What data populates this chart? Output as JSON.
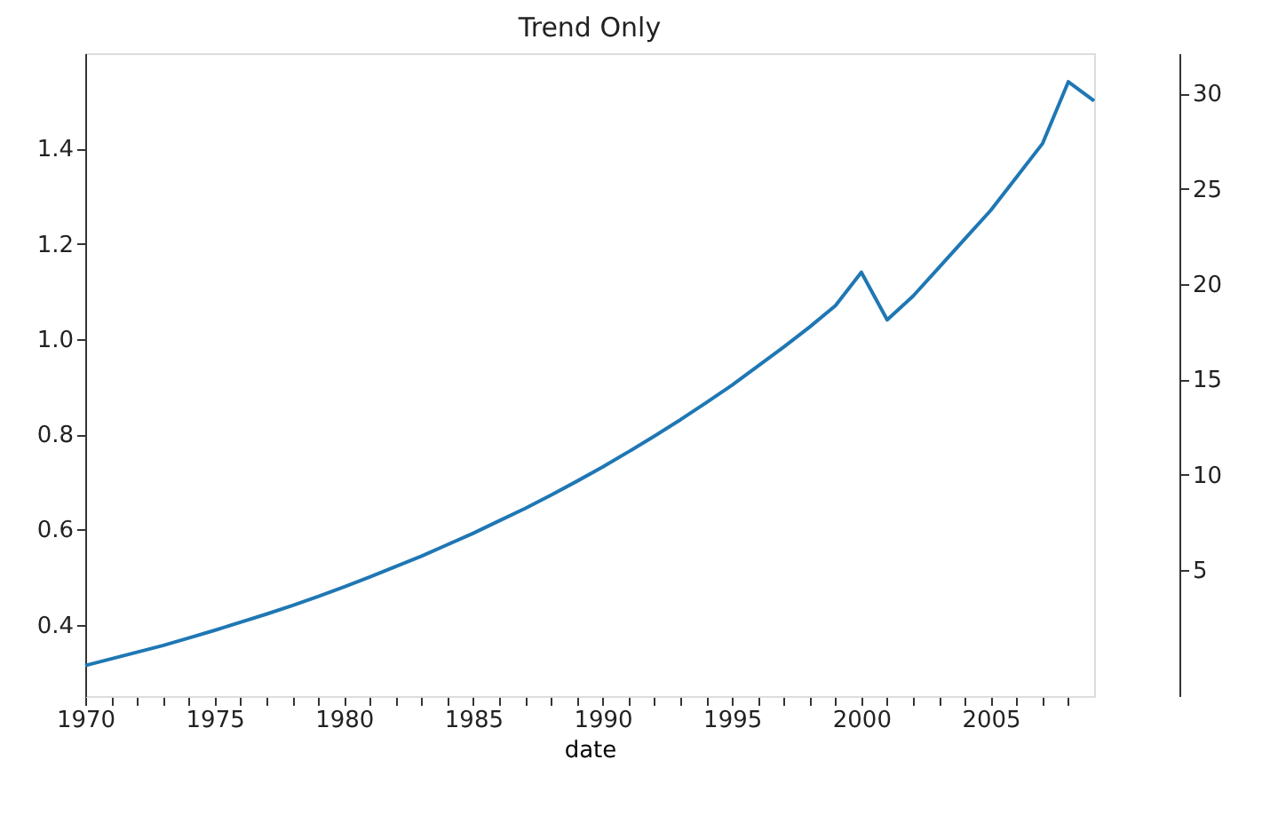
{
  "chart_data": {
    "type": "line",
    "title": "Trend Only",
    "xlabel": "date",
    "x": [
      1970,
      1971,
      1972,
      1973,
      1974,
      1975,
      1976,
      1977,
      1978,
      1979,
      1980,
      1981,
      1982,
      1983,
      1984,
      1985,
      1986,
      1987,
      1988,
      1989,
      1990,
      1991,
      1992,
      1993,
      1994,
      1995,
      1996,
      1997,
      1998,
      1999,
      2000,
      2001,
      2002,
      2003,
      2004,
      2005,
      2006,
      2007,
      2008,
      2009
    ],
    "series": [
      {
        "color": "#1f77b4",
        "values": [
          0.314,
          0.328,
          0.342,
          0.356,
          0.372,
          0.388,
          0.405,
          0.422,
          0.44,
          0.459,
          0.479,
          0.5,
          0.522,
          0.544,
          0.568,
          0.592,
          0.618,
          0.644,
          0.672,
          0.701,
          0.731,
          0.763,
          0.796,
          0.83,
          0.866,
          0.903,
          0.943,
          0.983,
          1.025,
          1.07,
          1.14,
          1.04,
          1.09,
          1.15,
          1.21,
          1.27,
          1.34,
          1.41,
          1.54,
          1.5
        ]
      }
    ],
    "xlim": [
      1970,
      2009
    ],
    "xticks": [
      1970,
      {
        "value": 1971,
        "label": null
      },
      {
        "value": 1972,
        "label": null
      },
      {
        "value": 1973,
        "label": null
      },
      {
        "value": 1974,
        "label": null
      },
      1975,
      {
        "value": 1976,
        "label": null
      },
      {
        "value": 1977,
        "label": null
      },
      {
        "value": 1978,
        "label": null
      },
      {
        "value": 1979,
        "label": null
      },
      1980,
      {
        "value": 1981,
        "label": null
      },
      {
        "value": 1982,
        "label": null
      },
      {
        "value": 1983,
        "label": null
      },
      {
        "value": 1984,
        "label": null
      },
      1985,
      {
        "value": 1986,
        "label": null
      },
      {
        "value": 1987,
        "label": null
      },
      {
        "value": 1988,
        "label": null
      },
      {
        "value": 1989,
        "label": null
      },
      1990,
      {
        "value": 1991,
        "label": null
      },
      {
        "value": 1992,
        "label": null
      },
      {
        "value": 1993,
        "label": null
      },
      {
        "value": 1994,
        "label": null
      },
      1995,
      {
        "value": 1996,
        "label": null
      },
      {
        "value": 1997,
        "label": null
      },
      {
        "value": 1998,
        "label": null
      },
      {
        "value": 1999,
        "label": null
      },
      2000,
      {
        "value": 2001,
        "label": null
      },
      {
        "value": 2002,
        "label": null
      },
      {
        "value": 2003,
        "label": null
      },
      {
        "value": 2004,
        "label": null
      },
      2005,
      {
        "value": 2006,
        "label": null
      },
      {
        "value": 2007,
        "label": null
      },
      {
        "value": 2008,
        "label": null
      }
    ],
    "ylim": [
      0.25,
      1.6
    ],
    "yticks": [
      0.4,
      0.6,
      0.8,
      {
        "value": 1.0,
        "label": "1.0"
      },
      1.2,
      1.4
    ],
    "y2lim": [
      -1.6,
      32.1
    ],
    "y2ticks": [
      5,
      10,
      15,
      20,
      25,
      30
    ],
    "grid": false,
    "marker": "none",
    "line_style": "solid"
  }
}
